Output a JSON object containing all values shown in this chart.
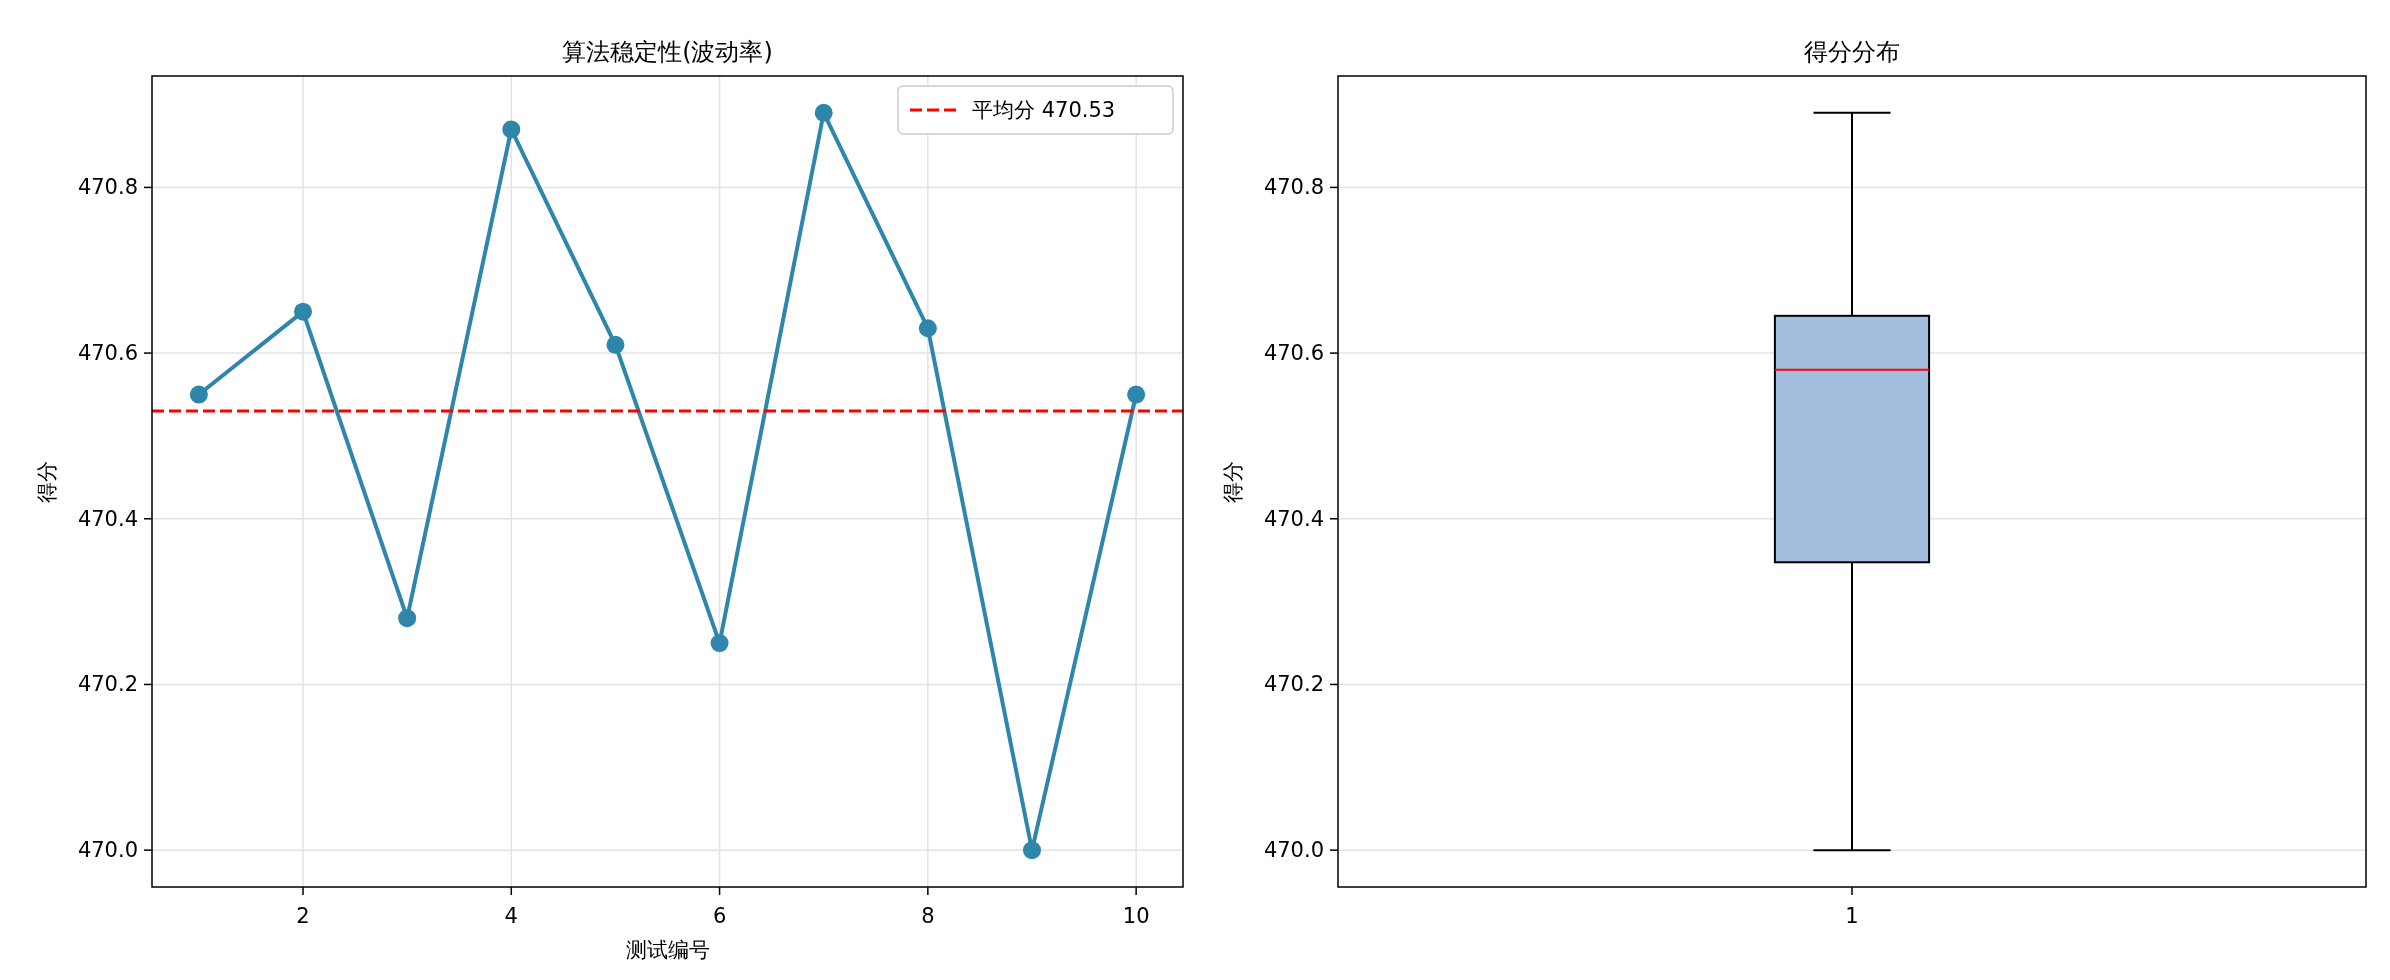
{
  "chart_data": [
    {
      "type": "line",
      "title": "算法稳定性(波动率)",
      "xlabel": "测试编号",
      "ylabel": "得分",
      "x": [
        1,
        2,
        3,
        4,
        5,
        6,
        7,
        8,
        9,
        10
      ],
      "series": [
        {
          "color": "#2e86ab",
          "values": [
            470.55,
            470.65,
            470.28,
            470.87,
            470.61,
            470.25,
            470.89,
            470.63,
            470.0,
            470.55
          ]
        }
      ],
      "marker": "circle",
      "xlim": [
        0.55,
        10.45
      ],
      "ylim": [
        469.9555,
        470.9345
      ],
      "xticks": [
        2,
        4,
        6,
        8,
        10
      ],
      "yticks": [
        {
          "value": 470,
          "label": "470.0"
        },
        470.2,
        470.4,
        470.6,
        470.8
      ],
      "ref_lines": [
        {
          "axis": "y",
          "value": 470.53,
          "label": "平均分 470.53",
          "color": "#ff0000",
          "line_style": "dashed"
        }
      ],
      "legend": "top right",
      "grid": true
    },
    {
      "type": "box",
      "title": "得分分布",
      "ylabel": "得分",
      "categories": [
        "1"
      ],
      "series": [
        {
          "color": "#a4bee0",
          "boxes": [
            {
              "low": 470.0,
              "q1": 470.3475,
              "median": 470.58,
              "q3": 470.645,
              "high": 470.89
            }
          ]
        }
      ],
      "ylim": [
        469.9555,
        470.9345
      ],
      "yticks": [
        {
          "value": 470,
          "label": "470.0"
        },
        470.2,
        470.4,
        470.6,
        470.8
      ],
      "grid": "y"
    }
  ]
}
